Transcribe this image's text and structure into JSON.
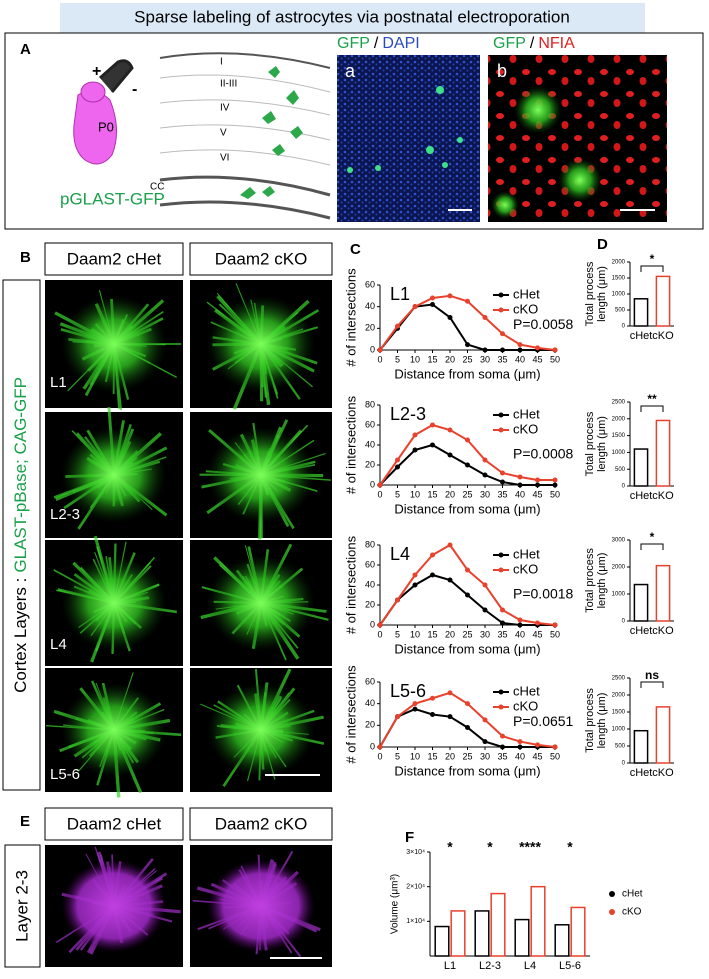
{
  "title": "Sparse labeling of astrocytes via postnatal electroporation",
  "panel_a": {
    "label": "A",
    "mouse": {
      "plus": "+",
      "minus": "-",
      "age": "P0",
      "construct": "pGLAST-GFP"
    },
    "layers": [
      "I",
      "II-III",
      "IV",
      "V",
      "VI"
    ],
    "cc": "CC",
    "image_a": {
      "label": "a",
      "stain1": "GFP",
      "separator": "/",
      "stain2": "DAPI"
    },
    "image_b": {
      "label": "b",
      "stain1": "GFP",
      "separator": "/",
      "stain2": "NFIA"
    }
  },
  "panel_b": {
    "label": "B",
    "columns": [
      "Daam2 cHet",
      "Daam2 cKO"
    ],
    "side_label": [
      "Cortex Layers :",
      "GLAST-pBase; CAG-GFP"
    ],
    "rows": [
      "L1",
      "L2-3",
      "L4",
      "L5-6"
    ]
  },
  "panel_c": {
    "label": "C"
  },
  "panel_d": {
    "label": "D"
  },
  "panel_e": {
    "label": "E",
    "columns": [
      "Daam2 cHet",
      "Daam2 cKO"
    ],
    "side_label": "Layer 2-3"
  },
  "panel_f": {
    "label": "F"
  },
  "chart_data": [
    {
      "type": "line",
      "title": "L1",
      "xlabel": "Distance from soma (μm)",
      "ylabel": "# of intersections",
      "annotation": "P=0.0058",
      "x": [
        0,
        5,
        10,
        15,
        20,
        25,
        30,
        35,
        40,
        45,
        50
      ],
      "xlim": [
        0,
        50
      ],
      "xticks": [
        0,
        5,
        10,
        15,
        20,
        25,
        30,
        35,
        40,
        45,
        50
      ],
      "ylim": [
        0,
        60
      ],
      "yticks": [
        0,
        20,
        40,
        60
      ],
      "series": [
        {
          "name": "cHet",
          "color": "#000000",
          "values": [
            0,
            20,
            40,
            42,
            30,
            5,
            0,
            0,
            0,
            0,
            0
          ]
        },
        {
          "name": "cKO",
          "color": "#e8412c",
          "values": [
            0,
            22,
            40,
            48,
            50,
            45,
            30,
            15,
            5,
            2,
            0
          ]
        }
      ]
    },
    {
      "type": "line",
      "title": "L2-3",
      "xlabel": "Distance from soma (μm)",
      "ylabel": "# of intersections",
      "annotation": "P=0.0008",
      "x": [
        0,
        5,
        10,
        15,
        20,
        25,
        30,
        35,
        40,
        45,
        50
      ],
      "xlim": [
        0,
        50
      ],
      "xticks": [
        0,
        5,
        10,
        15,
        20,
        25,
        30,
        35,
        40,
        45,
        50
      ],
      "ylim": [
        0,
        80
      ],
      "yticks": [
        0,
        20,
        40,
        60,
        80
      ],
      "series": [
        {
          "name": "cHet",
          "color": "#000000",
          "values": [
            0,
            18,
            35,
            40,
            30,
            20,
            10,
            3,
            0,
            0,
            0
          ]
        },
        {
          "name": "cKO",
          "color": "#e8412c",
          "values": [
            0,
            25,
            50,
            60,
            55,
            45,
            25,
            12,
            8,
            5,
            5
          ]
        }
      ]
    },
    {
      "type": "line",
      "title": "L4",
      "xlabel": "Distance from soma (μm)",
      "ylabel": "# of intersections",
      "annotation": "P=0.0018",
      "x": [
        0,
        5,
        10,
        15,
        20,
        25,
        30,
        35,
        40,
        45,
        50
      ],
      "xlim": [
        0,
        50
      ],
      "xticks": [
        0,
        5,
        10,
        15,
        20,
        25,
        30,
        35,
        40,
        45,
        50
      ],
      "ylim": [
        0,
        80
      ],
      "yticks": [
        0,
        20,
        40,
        60,
        80
      ],
      "series": [
        {
          "name": "cHet",
          "color": "#000000",
          "values": [
            0,
            25,
            40,
            50,
            45,
            30,
            15,
            2,
            0,
            0,
            0
          ]
        },
        {
          "name": "cKO",
          "color": "#e8412c",
          "values": [
            0,
            25,
            50,
            70,
            80,
            55,
            40,
            15,
            5,
            2,
            0
          ]
        }
      ]
    },
    {
      "type": "line",
      "title": "L5-6",
      "xlabel": "Distance from soma (μm)",
      "ylabel": "# of intersections",
      "annotation": "P=0.0651",
      "x": [
        0,
        5,
        10,
        15,
        20,
        25,
        30,
        35,
        40,
        45,
        50
      ],
      "xlim": [
        0,
        50
      ],
      "xticks": [
        0,
        5,
        10,
        15,
        20,
        25,
        30,
        35,
        40,
        45,
        50
      ],
      "ylim": [
        0,
        60
      ],
      "yticks": [
        0,
        20,
        40,
        60
      ],
      "series": [
        {
          "name": "cHet",
          "color": "#000000",
          "values": [
            0,
            28,
            35,
            30,
            28,
            18,
            5,
            0,
            0,
            0,
            0
          ]
        },
        {
          "name": "cKO",
          "color": "#e8412c",
          "values": [
            0,
            28,
            40,
            45,
            50,
            40,
            25,
            10,
            5,
            2,
            0
          ]
        }
      ]
    },
    {
      "type": "bar",
      "ylabel": [
        "Total process",
        "length (μm)"
      ],
      "categories": [
        "cHet",
        "cKO"
      ],
      "values": [
        850,
        1550
      ],
      "colors": [
        "#000000",
        "#e8412c"
      ],
      "significance": "*",
      "ylim": [
        0,
        2000
      ],
      "yticks": [
        0,
        500,
        1000,
        1500,
        2000
      ]
    },
    {
      "type": "bar",
      "ylabel": [
        "Total process",
        "length (μm)"
      ],
      "categories": [
        "cHet",
        "cKO"
      ],
      "values": [
        1100,
        1950
      ],
      "colors": [
        "#000000",
        "#e8412c"
      ],
      "significance": "**",
      "ylim": [
        0,
        2500
      ],
      "yticks": [
        0,
        500,
        1000,
        1500,
        2000,
        2500
      ]
    },
    {
      "type": "bar",
      "ylabel": [
        "Total process",
        "length (μm)"
      ],
      "categories": [
        "cHet",
        "cKO"
      ],
      "values": [
        1350,
        2050
      ],
      "colors": [
        "#000000",
        "#e8412c"
      ],
      "significance": "*",
      "ylim": [
        0,
        3000
      ],
      "yticks": [
        0,
        1000,
        2000,
        3000
      ]
    },
    {
      "type": "bar",
      "ylabel": [
        "Total process",
        "length (μm)"
      ],
      "categories": [
        "cHet",
        "cKO"
      ],
      "values": [
        950,
        1650
      ],
      "colors": [
        "#000000",
        "#e8412c"
      ],
      "significance": "ns",
      "ylim": [
        0,
        2500
      ],
      "yticks": [
        0,
        500,
        1000,
        1500,
        2000,
        2500
      ]
    },
    {
      "type": "grouped_bar",
      "ylabel": "Volume (μm³)",
      "categories": [
        "L1",
        "L2-3",
        "L4",
        "L5-6"
      ],
      "significance": [
        "*",
        "*",
        "****",
        "*"
      ],
      "ylim": [
        0,
        30000
      ],
      "yticks": [
        {
          "value": 10000,
          "label": "1×10⁴"
        },
        {
          "value": 20000,
          "label": "2×10⁴"
        },
        {
          "value": 30000,
          "label": "3×10⁴"
        }
      ],
      "legend": "right",
      "series": [
        {
          "name": "cHet",
          "color": "#000000",
          "values": [
            8500,
            13000,
            10500,
            9000
          ]
        },
        {
          "name": "cKO",
          "color": "#e8412c",
          "values": [
            13000,
            18000,
            20000,
            14000
          ]
        }
      ]
    }
  ]
}
